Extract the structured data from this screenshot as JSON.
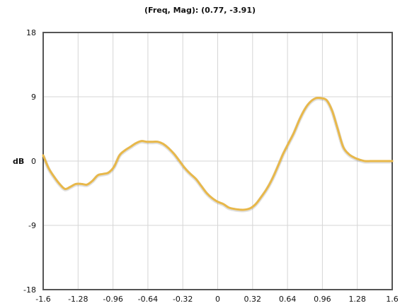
{
  "readout": "(Freq, Mag): (0.77, -3.91)",
  "chart_data": {
    "type": "line",
    "title": "",
    "xlabel": "",
    "ylabel": "dB",
    "xlim": [
      -1.6,
      1.6
    ],
    "ylim": [
      -18,
      18
    ],
    "x_ticks": [
      "-1.6",
      "-1.28",
      "-0.96",
      "-0.64",
      "-0.32",
      "0",
      "0.32",
      "0.64",
      "0.96",
      "1.28",
      "1.6"
    ],
    "y_ticks": [
      "18",
      "9",
      "0",
      "-9",
      "-18"
    ],
    "grid": true,
    "line_color": "#e8b84a",
    "series": [
      {
        "name": "",
        "x": [
          -1.6,
          -1.55,
          -1.5,
          -1.45,
          -1.4,
          -1.35,
          -1.3,
          -1.25,
          -1.2,
          -1.15,
          -1.1,
          -1.05,
          -1.0,
          -0.95,
          -0.9,
          -0.85,
          -0.8,
          -0.75,
          -0.7,
          -0.65,
          -0.6,
          -0.55,
          -0.5,
          -0.45,
          -0.4,
          -0.35,
          -0.3,
          -0.25,
          -0.2,
          -0.15,
          -0.1,
          -0.05,
          0.0,
          0.05,
          0.1,
          0.15,
          0.2,
          0.25,
          0.3,
          0.35,
          0.4,
          0.45,
          0.5,
          0.55,
          0.6,
          0.65,
          0.7,
          0.75,
          0.8,
          0.85,
          0.9,
          0.95,
          1.0,
          1.05,
          1.1,
          1.15,
          1.2,
          1.25,
          1.3,
          1.35,
          1.4,
          1.45,
          1.5,
          1.55,
          1.6
        ],
        "y": [
          0.8,
          -1.0,
          -2.2,
          -3.2,
          -3.9,
          -3.6,
          -3.2,
          -3.2,
          -3.3,
          -2.8,
          -2.0,
          -1.8,
          -1.6,
          -0.8,
          0.8,
          1.5,
          2.0,
          2.5,
          2.8,
          2.7,
          2.7,
          2.7,
          2.4,
          1.8,
          1.0,
          0.0,
          -1.0,
          -1.8,
          -2.5,
          -3.5,
          -4.5,
          -5.2,
          -5.7,
          -6.0,
          -6.5,
          -6.7,
          -6.8,
          -6.8,
          -6.6,
          -6.0,
          -5.0,
          -3.9,
          -2.5,
          -0.8,
          1.0,
          2.5,
          4.0,
          5.8,
          7.3,
          8.3,
          8.8,
          8.8,
          8.5,
          7.0,
          4.5,
          2.0,
          1.0,
          0.5,
          0.2,
          0.0,
          0.0,
          0.0,
          0.0,
          0.0,
          0.0
        ]
      }
    ]
  }
}
